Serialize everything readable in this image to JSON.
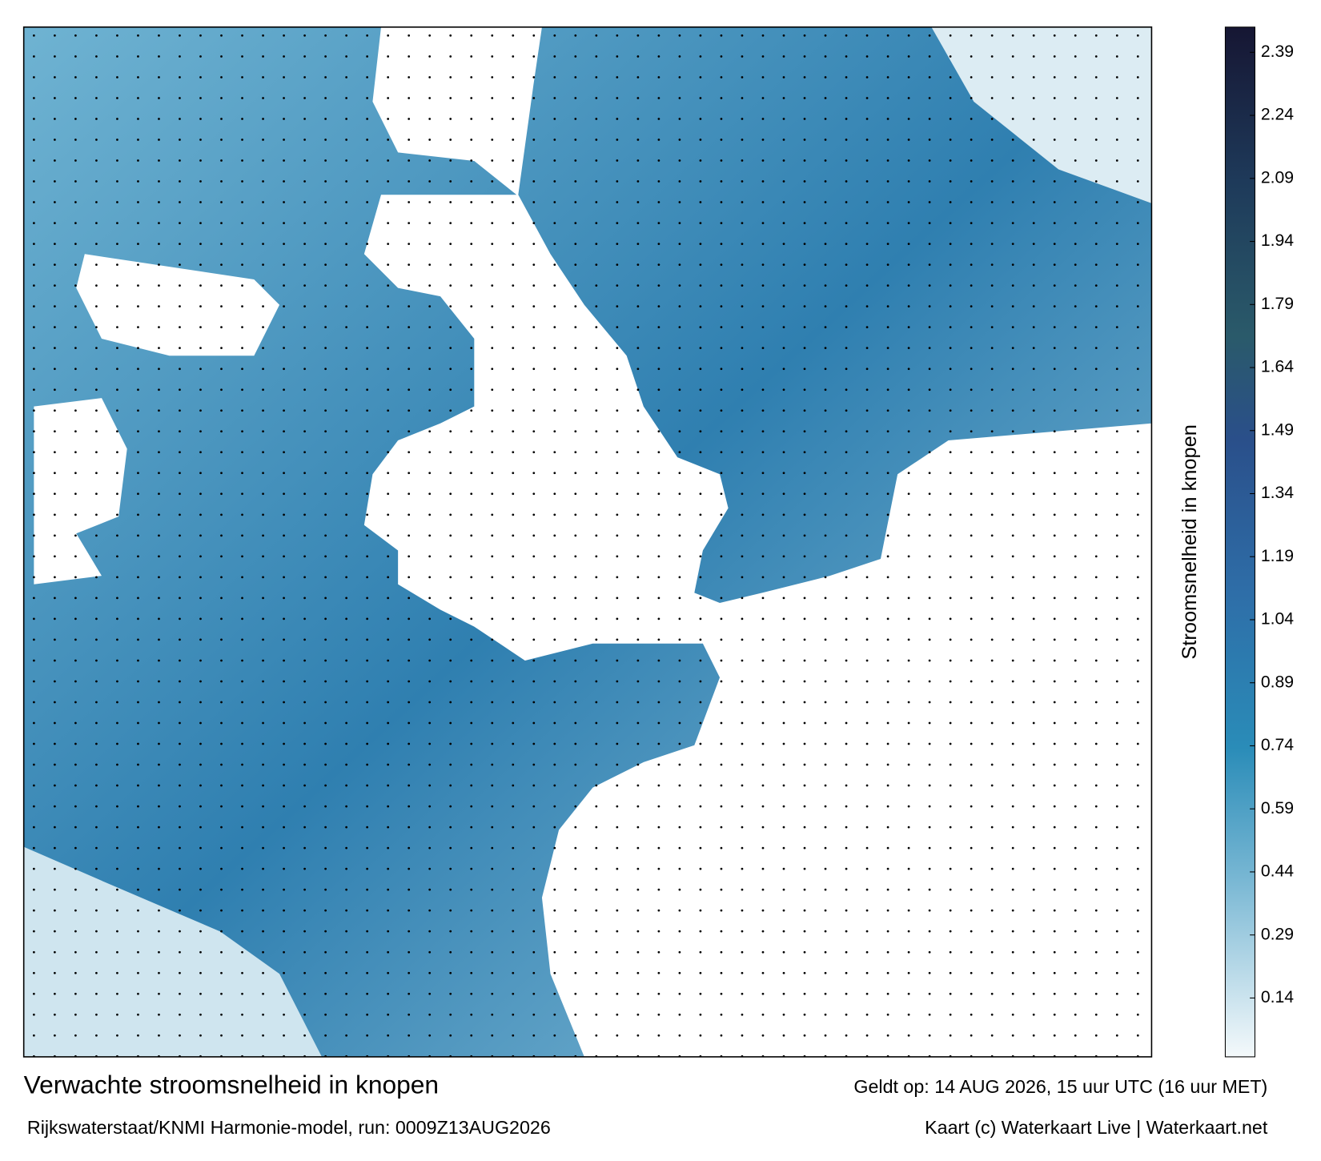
{
  "title": "Verwachte stroomsnelheid in knopen",
  "valid_time": "Geldt op: 14 AUG 2026, 15 uur UTC (16 uur MET)",
  "model_run": "Rijkswaterstaat/KNMI Harmonie-model, run: 0009Z13AUG2026",
  "credit": "Kaart (c) Waterkaart Live | Waterkaart.net",
  "colorbar": {
    "label": "Stroomsnelheid in knopen",
    "lim": [
      0,
      2.45
    ],
    "ticks": [
      0.14,
      0.29,
      0.44,
      0.59,
      0.74,
      0.89,
      1.04,
      1.19,
      1.34,
      1.49,
      1.64,
      1.79,
      1.94,
      2.09,
      2.24,
      2.39
    ]
  }
}
